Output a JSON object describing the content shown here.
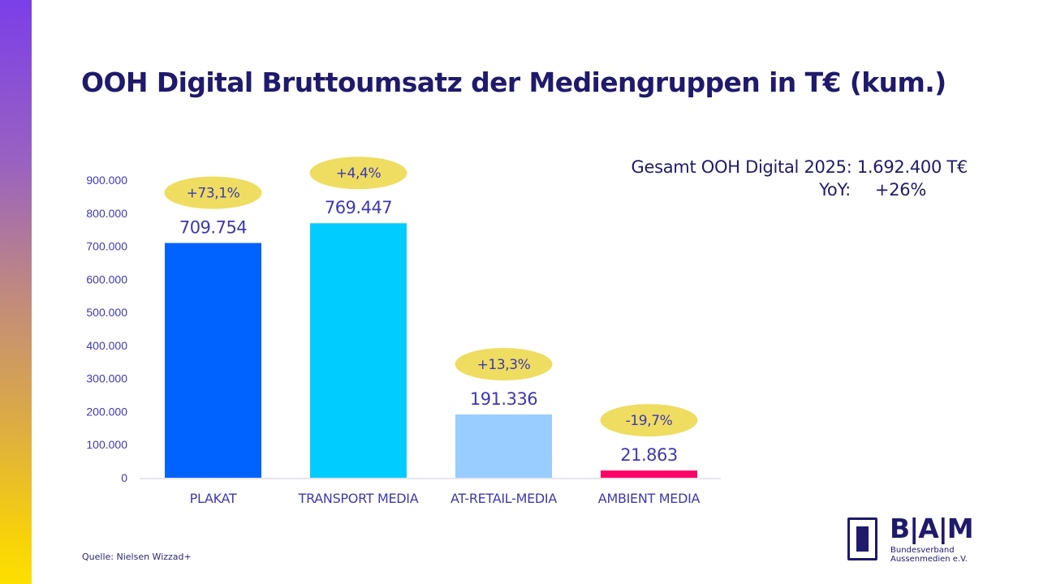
{
  "page": {
    "title": "OOH Digital Bruttoumsatz der Mediengruppen in T€ (kum.)",
    "summary": {
      "total_line": "Gesamt OOH Digital 2025: 1.692.400 T€",
      "yoy_label": "YoY:",
      "yoy_value": "+26%"
    },
    "source": "Quelle: Nielsen Wizzad+",
    "logo": {
      "letters": "B|A|M",
      "org_line1": "Bundesverband",
      "org_line2": "Aussenmedien e.V."
    }
  },
  "colors": {
    "title": "#1f1a6b",
    "labels": "#3f38b0",
    "change_bubble": "#eedd60",
    "axis": "#dddde6"
  },
  "chart_data": {
    "type": "bar",
    "title": "OOH Digital Bruttoumsatz der Mediengruppen in T€ (kum.)",
    "xlabel": "",
    "ylabel": "",
    "ylim": [
      0,
      900000
    ],
    "yticks": [
      0,
      100000,
      200000,
      300000,
      400000,
      500000,
      600000,
      700000,
      800000,
      900000
    ],
    "ytick_labels": [
      "0",
      "100.000",
      "200.000",
      "300.000",
      "400.000",
      "500.000",
      "600.000",
      "700.000",
      "800.000",
      "900.000"
    ],
    "grid": false,
    "legend": "none",
    "categories": [
      "PLAKAT",
      "TRANSPORT MEDIA",
      "AT-RETAIL-MEDIA",
      "AMBIENT MEDIA"
    ],
    "values": [
      709754,
      769447,
      191336,
      21863
    ],
    "value_labels": [
      "709.754",
      "769.447",
      "191.336",
      "21.863"
    ],
    "yoy_changes": [
      "+73,1%",
      "+4,4%",
      "+13,3%",
      "-19,7%"
    ],
    "bar_colors": [
      "#0062ff",
      "#00ccff",
      "#99ccff",
      "#ff0066"
    ],
    "annotations": [
      "Gesamt OOH Digital 2025: 1.692.400 T€",
      "YoY: +26%"
    ]
  }
}
